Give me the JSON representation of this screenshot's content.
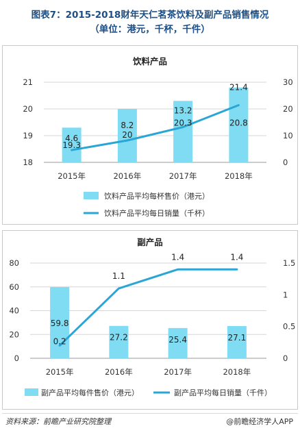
{
  "header": {
    "title_line1": "图表7：2015-2018财年天仁茗茶饮料及副产品销售情况",
    "title_line2": "（单位：港元，千杯，千件）"
  },
  "footer": {
    "source": "资料来源：前瞻产业研究院整理",
    "credit": "@前瞻经济学人APP"
  },
  "chart_data": [
    {
      "type": "bar",
      "title": "饮料产品",
      "categories": [
        "2015年",
        "2016年",
        "2017年",
        "2018年"
      ],
      "series": [
        {
          "name": "饮料产品平均每杯售价（港元）",
          "type": "bar",
          "axis": "left",
          "values": [
            19.3,
            20,
            20.3,
            20.8
          ],
          "color": "#7fdcf2"
        },
        {
          "name": "饮料产品平均每日销量（千杯）",
          "type": "line",
          "axis": "right",
          "values": [
            4.6,
            8.2,
            13.2,
            21.4
          ],
          "color": "#2aa6d6"
        }
      ],
      "ylim_left": [
        18,
        21
      ],
      "yticks_left": [
        "18",
        "19",
        "20",
        "21"
      ],
      "ylim_right": [
        0,
        30
      ],
      "yticks_right": [
        "0",
        "10",
        "20",
        "30"
      ],
      "grid": true,
      "legend": "bottom"
    },
    {
      "type": "bar",
      "title": "副产品",
      "categories": [
        "2015年",
        "2016年",
        "2017年",
        "2018年"
      ],
      "series": [
        {
          "name": "副产品平均每件售价（港元）",
          "type": "bar",
          "axis": "left",
          "values": [
            59.8,
            27.2,
            25.4,
            27.1
          ],
          "color": "#7fdcf2"
        },
        {
          "name": "副产品平均每日销量（千件）",
          "type": "line",
          "axis": "right",
          "values": [
            0.2,
            1.1,
            1.4,
            1.4
          ],
          "color": "#2aa6d6"
        }
      ],
      "ylim_left": [
        0,
        80
      ],
      "yticks_left": [
        "0",
        "20",
        "40",
        "60",
        "80"
      ],
      "ylim_right": [
        0,
        1.5
      ],
      "yticks_right": [
        "0",
        "0.5",
        "1",
        "1.5"
      ],
      "grid": true,
      "legend": "bottom"
    }
  ]
}
